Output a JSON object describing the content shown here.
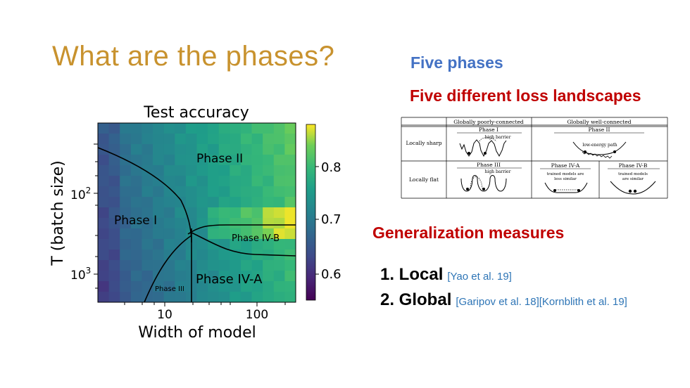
{
  "slide": {
    "title": "What are the phases?",
    "five_phases": "Five phases",
    "five_loss": "Five different loss landscapes",
    "generalization": "Generalization measures",
    "items": [
      {
        "label": "1. Local",
        "cite": "[Yao et al. 19]"
      },
      {
        "label": "2. Global",
        "cite": "[Garipov et al. 18][Kornblith et al. 19]"
      }
    ]
  },
  "chart_data": {
    "type": "heatmap",
    "title": "Test accuracy",
    "xlabel": "Width of model",
    "ylabel": "T (batch size)",
    "xticks": [
      "10",
      "100"
    ],
    "yticks": [
      "10^2",
      "10^3"
    ],
    "colorbar_ticks": [
      "0.6",
      "0.7",
      "0.8"
    ],
    "colorbar_range": [
      0.55,
      0.87
    ],
    "colormap": "viridis",
    "phase_labels": [
      "Phase I",
      "Phase II",
      "Phase III",
      "Phase IV-A",
      "Phase IV-B"
    ]
  },
  "landscape_table": {
    "col_headers": [
      "Globally poorly-connected",
      "Globally well-connected"
    ],
    "row_headers": [
      "Locally sharp",
      "Locally flat"
    ],
    "cells": {
      "phase1": {
        "name": "Phase I",
        "note": "high barrier"
      },
      "phase2": {
        "name": "Phase II",
        "note": "low-energy path"
      },
      "phase3": {
        "name": "Phase III",
        "note": "high barrier"
      },
      "phase4a": {
        "name": "Phase IV-A",
        "note1": "trained models are",
        "note2": "less similar"
      },
      "phase4b": {
        "name": "Phase IV-B",
        "note1": "trained models",
        "note2": "are similar"
      }
    }
  }
}
